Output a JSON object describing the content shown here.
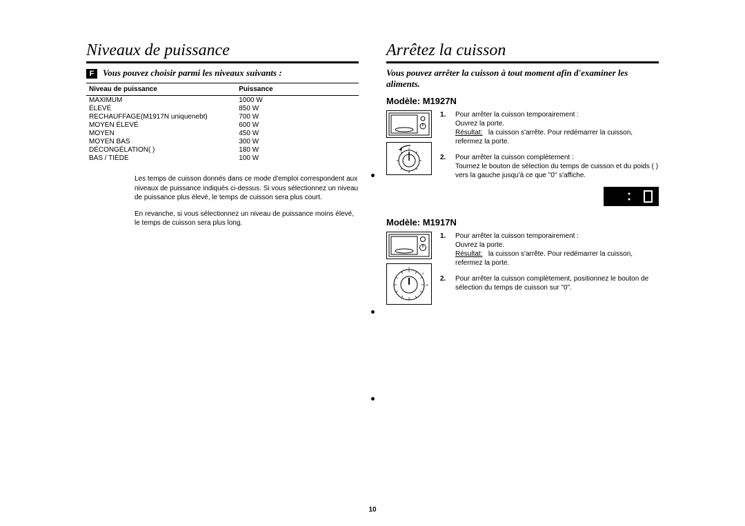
{
  "page_number": "10",
  "left": {
    "title": "Niveaux de puissance",
    "f_label": "F",
    "intro": "Vous pouvez choisir parmi les niveaux suivants :",
    "table": {
      "col1": "Niveau de puissance",
      "col2": "Puissance",
      "rows": [
        [
          "MAXIMUM",
          "1000 W"
        ],
        [
          "ÉLEVÉ",
          "850 W"
        ],
        [
          "RECHAUFFAGE(M1917N uniquenebt)",
          "700 W"
        ],
        [
          "MOYEN ÉLEVÉ",
          "600 W"
        ],
        [
          "MOYEN",
          "450 W"
        ],
        [
          "MOYEN BAS",
          "300 W"
        ],
        [
          "DÉCONGÉLATION( )",
          "180 W"
        ],
        [
          "BAS / TIÈDE",
          "100 W"
        ]
      ]
    },
    "note1": "Les temps de cuisson donnés dans ce mode d'emploi correspondent aux niveaux de puissance indiqués ci-dessus. Si vous sélectionnez un niveau de puissance plus élevé, le temps de cuisson sera plus court.",
    "note2": "En revanche, si vous sélectionnez un niveau de puissance moins élevé, le temps de cuisson sera plus long."
  },
  "right": {
    "title": "Arrêtez la cuisson",
    "intro": "Vous pouvez arrêter la cuisson à tout moment afin d'examiner les aliments.",
    "model1": {
      "label": "Modèle:  M1927N",
      "step1_num": "1.",
      "step1_a": "Pour arrêter la cuisson temporairement :",
      "step1_b": "Ouvrez la porte.",
      "step1_res_label": "Résultat:",
      "step1_res": "la cuisson s'arrête. Pour redémarrer la cuisson, refermez la porte.",
      "step2_num": "2.",
      "step2_a": "Pour arrêter la cuisson complètement :",
      "step2_b": "Tournez le bouton de sélection du temps de cuisson et du poids ( ) vers la gauche jusqu'à ce que \"0\" s'affiche.",
      "digital_colon": ":",
      "digital_zero": "0"
    },
    "model2": {
      "label": "Modèle:  M1917N",
      "step1_num": "1.",
      "step1_a": "Pour arrêter la cuisson temporairement :",
      "step1_b": "Ouvrez la porte.",
      "step1_res_label": "Résultat:",
      "step1_res": "la cuisson s'arrête. Pour redémarrer la cuisson, refermez la porte.",
      "step2_num": "2.",
      "step2_a": "Pour arrêter la cuisson complètement, positionnez le bouton de sélection du temps de cuisson sur \"0\"."
    }
  },
  "colors": {
    "text": "#000000",
    "bg": "#ffffff",
    "rule": "#000000"
  }
}
